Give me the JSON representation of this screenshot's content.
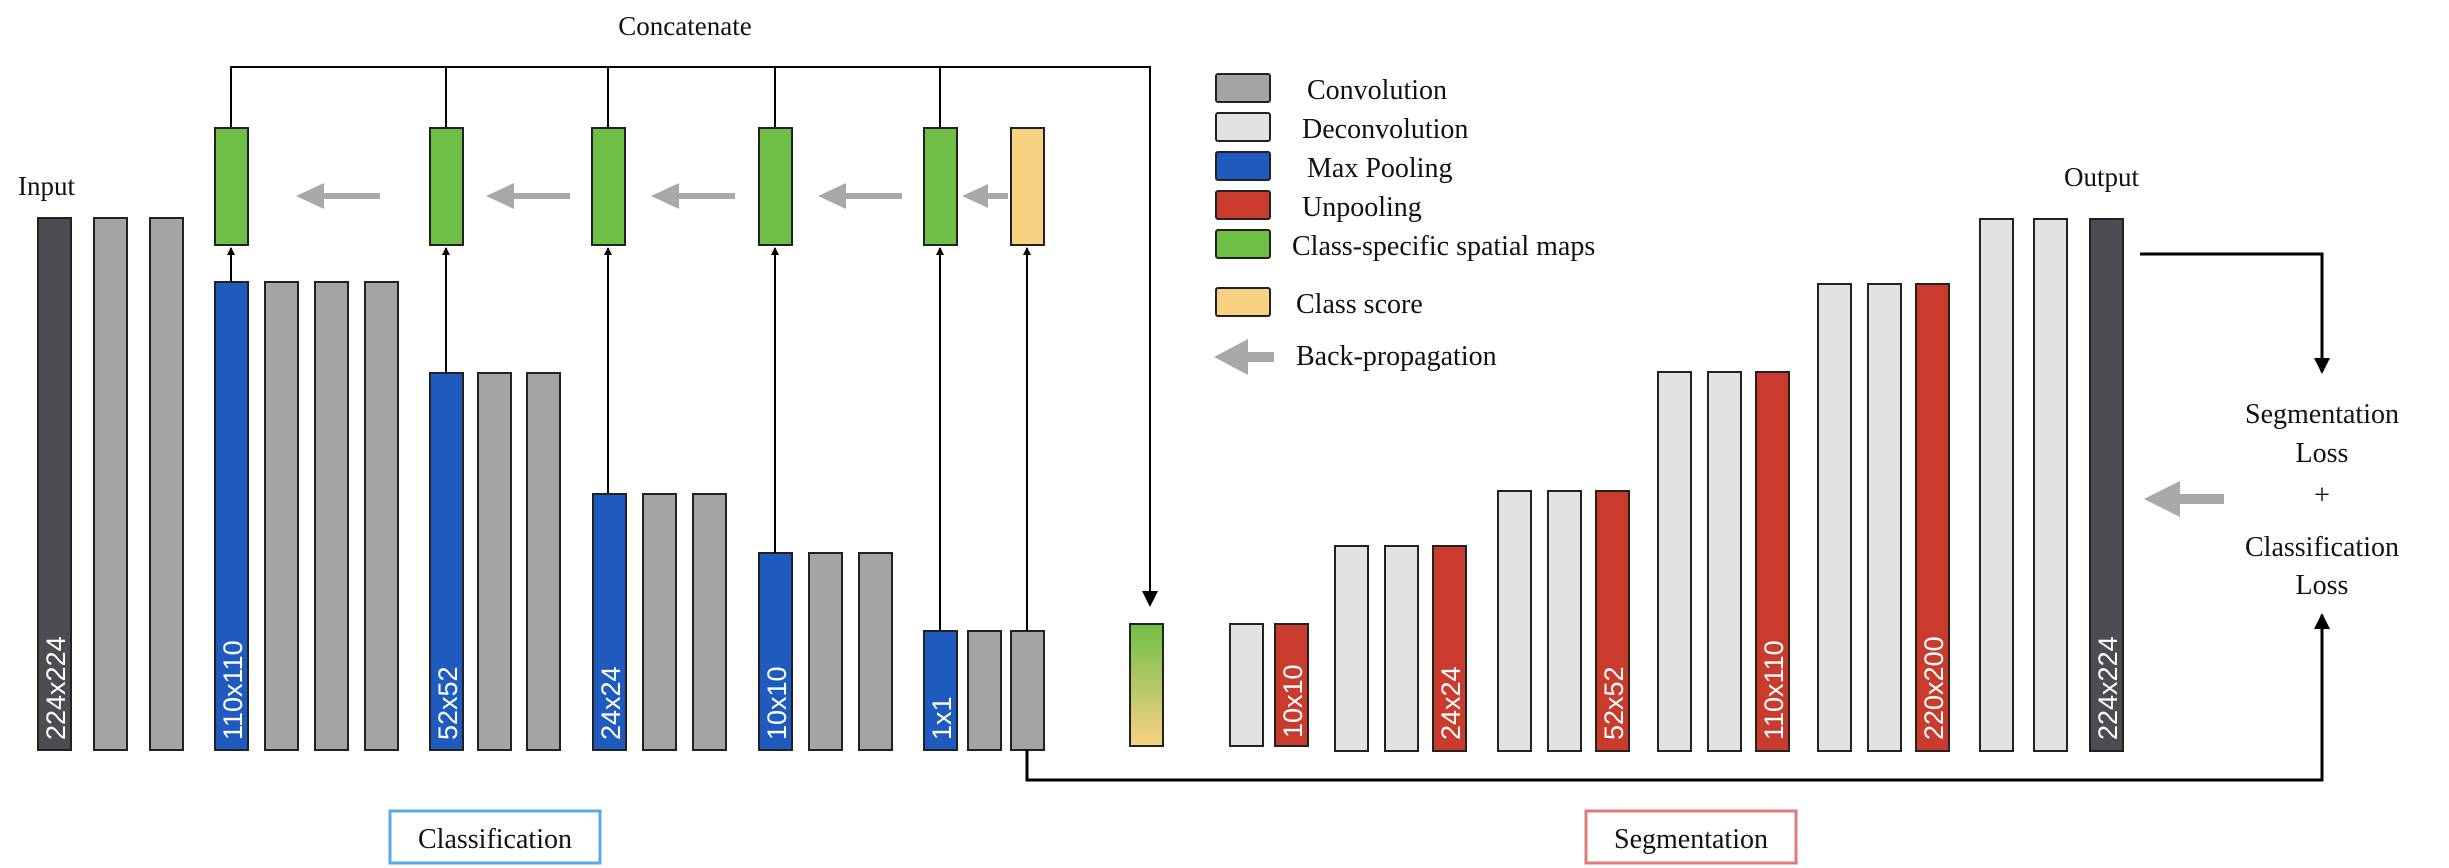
{
  "labels": {
    "concatenate": "Concatenate",
    "input": "Input",
    "output": "Output",
    "loss_line1": "Segmentation",
    "loss_line2": "Loss",
    "loss_plus": "+",
    "loss_line3": "Classification",
    "loss_line4": "Loss",
    "classification_box": "Classification",
    "segmentation_box": "Segmentation"
  },
  "legend": [
    {
      "key": "conv",
      "label": "Convolution",
      "color": "#a4a4a4"
    },
    {
      "key": "deconv",
      "label": "Deconvolution",
      "color": "#e2e2e4"
    },
    {
      "key": "pool",
      "label": "Max Pooling",
      "color": "#1f5bbf"
    },
    {
      "key": "unpool",
      "label": "Unpooling",
      "color": "#c93b2c"
    },
    {
      "key": "cmap",
      "label": "Class-specific spatial maps",
      "color": "#6fbe45"
    },
    {
      "key": "score",
      "label": "Class score",
      "color": "#f8d283"
    },
    {
      "key": "backprop",
      "label": "Back-propagation",
      "color": "#a9a9a9"
    }
  ],
  "size_labels": {
    "input": "224x224",
    "pool1": "110x110",
    "pool2": "52x52",
    "pool3": "24x24",
    "pool4": "10x10",
    "pool5": "1x1",
    "unpool1": "10x10",
    "unpool2": "24x24",
    "unpool3": "52x52",
    "unpool4": "110x110",
    "unpool5": "220x200",
    "output": "224x224"
  },
  "colors": {
    "io": "#4b4d52",
    "conv": "#a4a4a4",
    "deconv": "#e2e2e4",
    "pool": "#1f5bbf",
    "unpool": "#c93b2c",
    "cmap": "#6fbe45",
    "score": "#f8d283",
    "classification_border": "#5aa9e6",
    "segmentation_border": "#e07a7a",
    "arrow_gray": "#a9a9a9"
  }
}
